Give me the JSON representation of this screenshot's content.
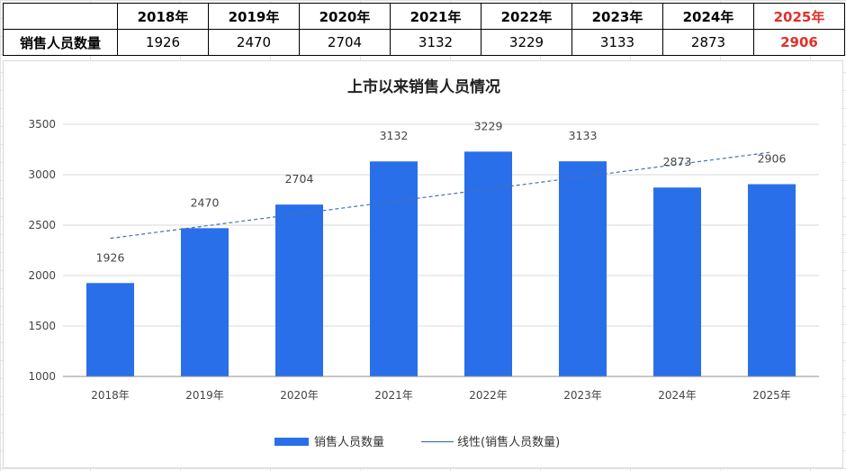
{
  "table": {
    "header": [
      "",
      "2018年",
      "2019年",
      "2020年",
      "2021年",
      "2022年",
      "2023年",
      "2024年",
      "2025年"
    ],
    "row_label": "销售人员数量",
    "values": [
      "1926",
      "2470",
      "2704",
      "3132",
      "3229",
      "3133",
      "2873",
      "2906"
    ],
    "highlight_color": "#e0302a"
  },
  "chart_data": {
    "type": "bar",
    "title": "上市以来销售人员情况",
    "categories": [
      "2018年",
      "2019年",
      "2020年",
      "2021年",
      "2022年",
      "2023年",
      "2024年",
      "2025年"
    ],
    "series": [
      {
        "name": "销售人员数量",
        "values": [
          1926,
          2470,
          2704,
          3132,
          3229,
          3133,
          2873,
          2906
        ],
        "color": "#2a6fea"
      }
    ],
    "trendline": {
      "name": "线性(销售人员数量)",
      "type": "linear",
      "color": "#4a6fae"
    },
    "ylim": [
      1000,
      3500
    ],
    "yticks": [
      1000,
      1500,
      2000,
      2500,
      3000,
      3500
    ],
    "grid": true,
    "legend": "bottom"
  }
}
